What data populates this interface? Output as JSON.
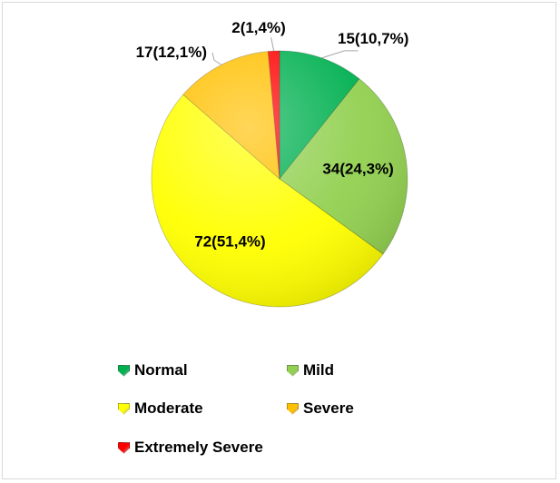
{
  "chart_data": {
    "type": "pie",
    "title": "",
    "categories": [
      "Normal",
      "Mild",
      "Moderate",
      "Severe",
      "Extremely Severe"
    ],
    "values": [
      15,
      34,
      72,
      17,
      2
    ],
    "percentages": [
      10.7,
      24.3,
      51.4,
      12.1,
      1.4
    ],
    "data_labels": [
      "15(10,7%)",
      "34(24,3%)",
      "72(51,4%)",
      "17(12,1%)",
      "2(1,4%)"
    ],
    "colors": [
      "#00b050",
      "#92d050",
      "#ffff00",
      "#ffc000",
      "#ff0000"
    ],
    "legend": {
      "position": "bottom",
      "items": [
        {
          "label": "Normal",
          "color": "#00b050"
        },
        {
          "label": "Mild",
          "color": "#92d050"
        },
        {
          "label": "Moderate",
          "color": "#ffff00"
        },
        {
          "label": "Severe",
          "color": "#ffc000"
        },
        {
          "label": "Extremely Severe",
          "color": "#ff0000"
        }
      ]
    }
  }
}
